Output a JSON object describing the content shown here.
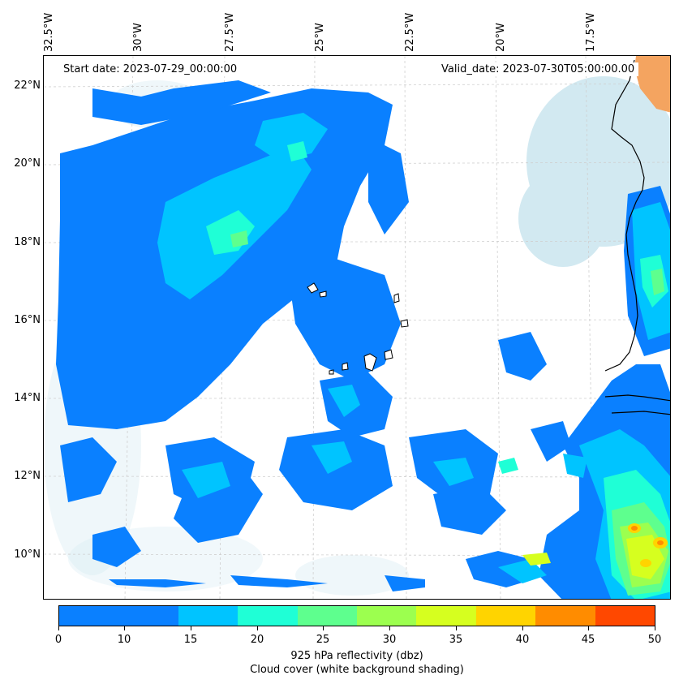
{
  "header": {
    "start_date": "Start date: 2023-07-29_00:00:00",
    "valid_date": "Valid_date: 2023-07-30T05:00:00.00"
  },
  "axes": {
    "lon_labels": [
      "32.5°W",
      "30°W",
      "27.5°W",
      "25°W",
      "22.5°W",
      "20°W",
      "17.5°W"
    ],
    "lat_labels": [
      "22°N",
      "20°N",
      "18°N",
      "16°N",
      "14°N",
      "12°N",
      "10°N"
    ]
  },
  "colorbar": {
    "ticks": [
      "0",
      "5",
      "10",
      "15",
      "20",
      "25",
      "30",
      "35",
      "40",
      "45",
      "50"
    ],
    "colors": [
      "#0a80ff",
      "#00c4ff",
      "#1fffd6",
      "#5eff8e",
      "#9cff4f",
      "#d6ff1f",
      "#ffd400",
      "#ff8c00",
      "#ff4800"
    ],
    "label_line1": "925 hPa reflectivity (dbz)",
    "label_line2": "Cloud cover (white background shading)"
  },
  "legend_colors": {
    "cloud_cover": "#add8e6",
    "land_orange": "#f4a460"
  }
}
